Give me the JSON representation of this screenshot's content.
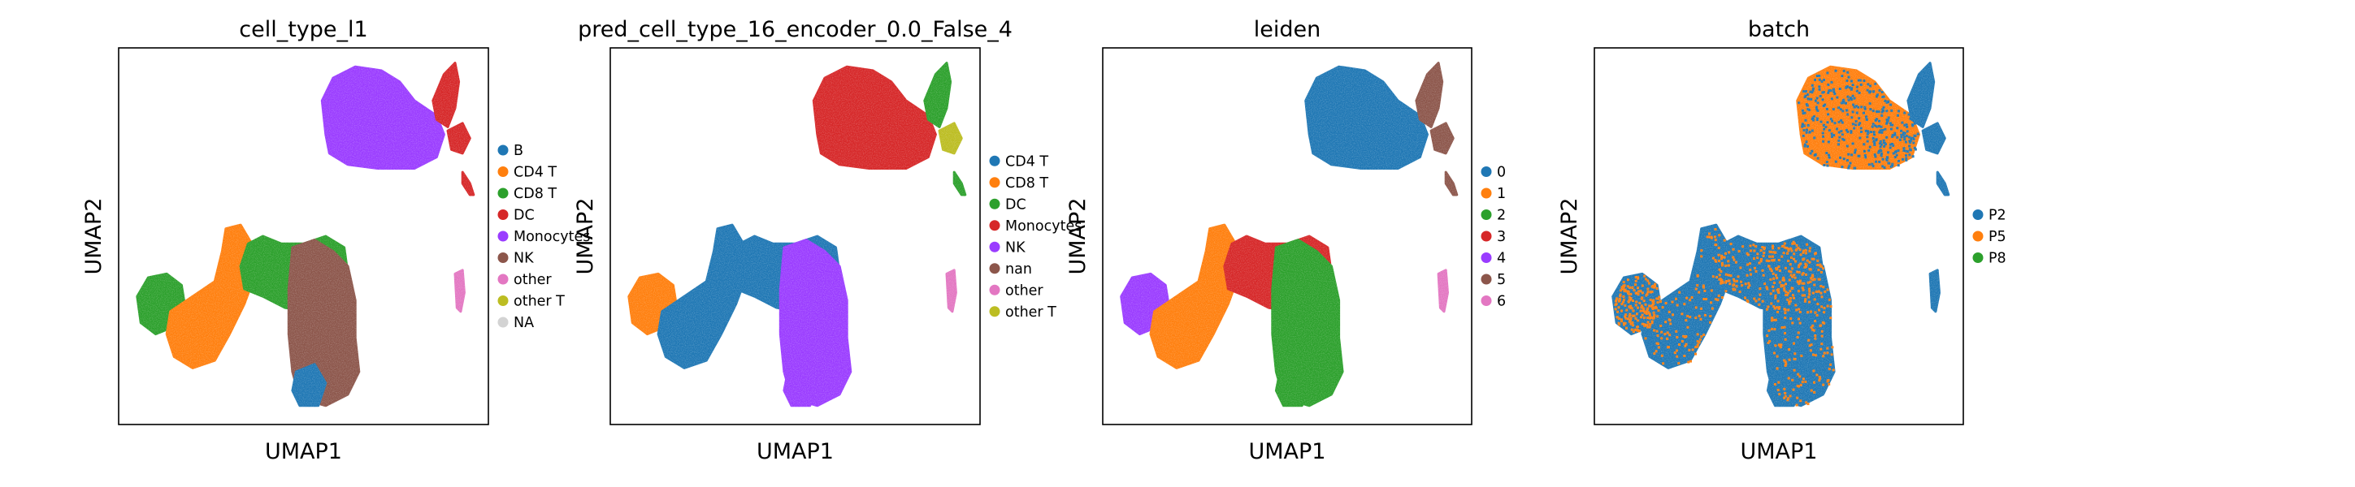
{
  "chart_data": [
    {
      "type": "scatter",
      "title": "cell_type_l1",
      "xlabel": "UMAP1",
      "ylabel": "UMAP2",
      "grid": false,
      "legend_position": "right",
      "legend": [
        {
          "label": "B",
          "color": "#1f77b4"
        },
        {
          "label": "CD4 T",
          "color": "#ff7f0e"
        },
        {
          "label": "CD8 T",
          "color": "#2ca02c"
        },
        {
          "label": "DC",
          "color": "#d62728"
        },
        {
          "label": "Monocytes",
          "color": "#9a3cff"
        },
        {
          "label": "NK",
          "color": "#8c564b"
        },
        {
          "label": "other",
          "color": "#e377c2"
        },
        {
          "label": "other T",
          "color": "#bcbd22"
        },
        {
          "label": "NA",
          "color": "#d3d3d3"
        }
      ]
    },
    {
      "type": "scatter",
      "title": "pred_cell_type_16_encoder_0.0_False_4",
      "xlabel": "UMAP1",
      "ylabel": "UMAP2",
      "grid": false,
      "legend_position": "right",
      "legend": [
        {
          "label": "CD4 T",
          "color": "#1f77b4"
        },
        {
          "label": "CD8 T",
          "color": "#ff7f0e"
        },
        {
          "label": "DC",
          "color": "#2ca02c"
        },
        {
          "label": "Monocytes",
          "color": "#d62728"
        },
        {
          "label": "NK",
          "color": "#9a3cff"
        },
        {
          "label": "nan",
          "color": "#8c564b"
        },
        {
          "label": "other",
          "color": "#e377c2"
        },
        {
          "label": "other T",
          "color": "#bcbd22"
        }
      ]
    },
    {
      "type": "scatter",
      "title": "leiden",
      "xlabel": "UMAP1",
      "ylabel": "UMAP2",
      "grid": false,
      "legend_position": "right",
      "legend": [
        {
          "label": "0",
          "color": "#1f77b4"
        },
        {
          "label": "1",
          "color": "#ff7f0e"
        },
        {
          "label": "2",
          "color": "#2ca02c"
        },
        {
          "label": "3",
          "color": "#d62728"
        },
        {
          "label": "4",
          "color": "#9a3cff"
        },
        {
          "label": "5",
          "color": "#8c564b"
        },
        {
          "label": "6",
          "color": "#e377c2"
        }
      ]
    },
    {
      "type": "scatter",
      "title": "batch",
      "xlabel": "UMAP1",
      "ylabel": "UMAP2",
      "grid": false,
      "legend_position": "right",
      "legend": [
        {
          "label": "P2",
          "color": "#1f77b4"
        },
        {
          "label": "P5",
          "color": "#ff7f0e"
        },
        {
          "label": "P8",
          "color": "#2ca02c"
        }
      ]
    }
  ]
}
